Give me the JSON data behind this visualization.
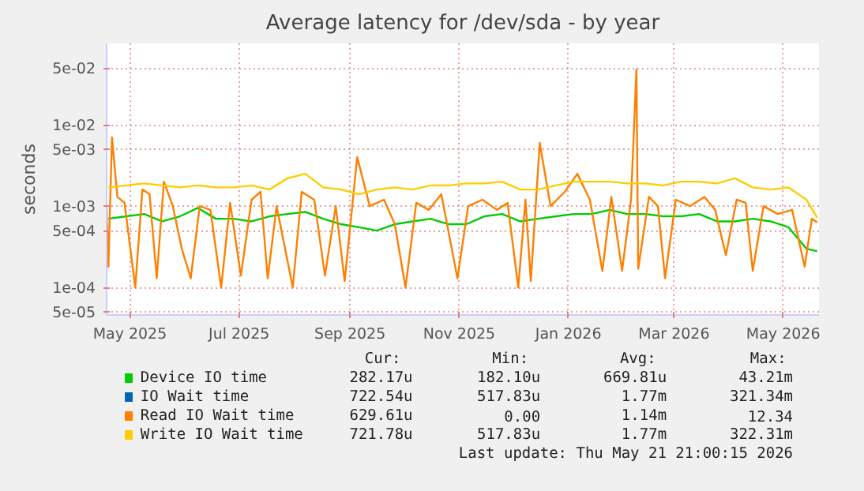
{
  "chart_data": {
    "type": "line",
    "title": "Average latency for /dev/sda - by year",
    "ylabel": "seconds",
    "log": true,
    "grid": true,
    "legend": "bottom",
    "xlim": [
      "2025-04-18",
      "2026-05-21"
    ],
    "ylim": [
      4.6e-05,
      0.1
    ],
    "xticks": [
      {
        "value": "2025-05-01",
        "label": "May 2025"
      },
      {
        "value": "2025-07-01",
        "label": "Jul 2025"
      },
      {
        "value": "2025-09-01",
        "label": "Sep 2025"
      },
      {
        "value": "2025-11-01",
        "label": "Nov 2025"
      },
      {
        "value": "2026-01-01",
        "label": "Jan 2026"
      },
      {
        "value": "2026-03-01",
        "label": "Mar 2026"
      },
      {
        "value": "2026-05-01",
        "label": "May 2026"
      }
    ],
    "yticks": [
      {
        "value": 5e-05,
        "label": "5e-05"
      },
      {
        "value": 0.0001,
        "label": "1e-04"
      },
      {
        "value": 0.0005,
        "label": "5e-04"
      },
      {
        "value": 0.001,
        "label": "1e-03"
      },
      {
        "value": 0.005,
        "label": "5e-03"
      },
      {
        "value": 0.01,
        "label": "1e-02"
      },
      {
        "value": 0.05,
        "label": "5e-02"
      }
    ],
    "x": [
      "2025-04-19",
      "2025-04-29",
      "2025-05-09",
      "2025-05-19",
      "2025-05-29",
      "2025-06-08",
      "2025-06-18",
      "2025-06-28",
      "2025-07-08",
      "2025-07-18",
      "2025-07-28",
      "2025-08-07",
      "2025-08-17",
      "2025-08-27",
      "2025-09-06",
      "2025-09-16",
      "2025-09-26",
      "2025-10-06",
      "2025-10-16",
      "2025-10-26",
      "2025-11-05",
      "2025-11-15",
      "2025-11-25",
      "2025-12-05",
      "2025-12-15",
      "2025-12-25",
      "2026-01-04",
      "2026-01-14",
      "2026-01-24",
      "2026-02-03",
      "2026-02-13",
      "2026-02-23",
      "2026-03-05",
      "2026-03-15",
      "2026-03-25",
      "2026-04-04",
      "2026-04-14",
      "2026-04-24",
      "2026-05-04",
      "2026-05-14",
      "2026-05-20"
    ],
    "series": [
      {
        "name": "Device IO time",
        "color": "#00cc00",
        "values": [
          0.0007,
          0.00075,
          0.0008,
          0.00065,
          0.00075,
          0.00095,
          0.0007,
          0.0007,
          0.00065,
          0.00075,
          0.0008,
          0.00085,
          0.0007,
          0.0006,
          0.00055,
          0.0005,
          0.0006,
          0.00065,
          0.0007,
          0.0006,
          0.0006,
          0.00075,
          0.0008,
          0.00065,
          0.0007,
          0.00075,
          0.0008,
          0.0008,
          0.0009,
          0.0008,
          0.0008,
          0.00075,
          0.00075,
          0.0008,
          0.00065,
          0.00065,
          0.0007,
          0.00065,
          0.00055,
          0.0003,
          0.00028
        ]
      },
      {
        "name": "IO Wait time",
        "color": "#0066b3",
        "values": [
          null,
          null,
          null,
          null,
          null,
          null,
          null,
          null,
          null,
          null,
          null,
          null,
          null,
          null,
          null,
          null,
          null,
          null,
          null,
          null,
          null,
          null,
          null,
          null,
          null,
          null,
          null,
          null,
          null,
          null,
          null,
          null,
          null,
          null,
          null,
          null,
          null,
          null,
          null,
          null,
          null
        ]
      },
      {
        "name": "Read IO Wait time",
        "color": "#ff8000",
        "x": [
          "2025-04-18",
          "2025-04-19",
          "2025-04-21",
          "2025-04-24",
          "2025-04-28",
          "2025-05-04",
          "2025-05-08",
          "2025-05-12",
          "2025-05-16",
          "2025-05-20",
          "2025-05-25",
          "2025-05-30",
          "2025-06-04",
          "2025-06-09",
          "2025-06-15",
          "2025-06-21",
          "2025-06-26",
          "2025-07-02",
          "2025-07-08",
          "2025-07-13",
          "2025-07-17",
          "2025-07-22",
          "2025-07-31",
          "2025-08-05",
          "2025-08-12",
          "2025-08-18",
          "2025-08-24",
          "2025-08-29",
          "2025-09-05",
          "2025-09-12",
          "2025-09-20",
          "2025-09-26",
          "2025-10-02",
          "2025-10-08",
          "2025-10-15",
          "2025-10-22",
          "2025-10-31",
          "2025-11-06",
          "2025-11-14",
          "2025-11-22",
          "2025-11-28",
          "2025-12-04",
          "2025-12-08",
          "2025-12-11",
          "2025-12-16",
          "2025-12-22",
          "2025-12-30",
          "2026-01-06",
          "2026-01-13",
          "2026-01-20",
          "2026-01-25",
          "2026-01-31",
          "2026-02-05",
          "2026-02-08",
          "2026-02-09",
          "2026-02-15",
          "2026-02-20",
          "2026-02-24",
          "2026-03-02",
          "2026-03-10",
          "2026-03-18",
          "2026-03-24",
          "2026-03-30",
          "2026-04-05",
          "2026-04-10",
          "2026-04-14",
          "2026-04-20",
          "2026-04-28",
          "2026-05-06",
          "2026-05-13",
          "2026-05-17",
          "2026-05-20"
        ],
        "values": [
          0.001,
          0.00018,
          0.007,
          0.0013,
          0.0011,
          0.0001,
          0.0016,
          0.0014,
          0.00013,
          0.002,
          0.001,
          0.0003,
          0.00013,
          0.001,
          0.0009,
          0.0001,
          0.0011,
          0.00014,
          0.0012,
          0.0015,
          0.00013,
          0.001,
          0.0001,
          0.0015,
          0.0012,
          0.00014,
          0.001,
          0.00012,
          0.004,
          0.001,
          0.0012,
          0.0006,
          0.0001,
          0.0011,
          0.0009,
          0.0014,
          0.00013,
          0.001,
          0.0012,
          0.0009,
          0.0011,
          0.0001,
          0.0012,
          0.00012,
          0.006,
          0.001,
          0.0015,
          0.0025,
          0.0012,
          0.00016,
          0.0013,
          0.00016,
          0.0012,
          0.048,
          0.00017,
          0.0013,
          0.001,
          0.00013,
          0.0012,
          0.001,
          0.0013,
          0.0009,
          0.00025,
          0.0012,
          0.0011,
          0.00016,
          0.001,
          0.0008,
          0.0009,
          0.00018,
          0.0007,
          0.00063
        ]
      },
      {
        "name": "Write IO Wait time",
        "color": "#ffcc00",
        "values": [
          0.0017,
          0.0018,
          0.0019,
          0.0018,
          0.0017,
          0.0018,
          0.0017,
          0.0017,
          0.0018,
          0.0016,
          0.0022,
          0.0025,
          0.0017,
          0.0016,
          0.0014,
          0.0016,
          0.0017,
          0.0016,
          0.0018,
          0.0018,
          0.0019,
          0.0019,
          0.002,
          0.0016,
          0.0016,
          0.0018,
          0.002,
          0.002,
          0.002,
          0.0019,
          0.0019,
          0.0018,
          0.002,
          0.002,
          0.0019,
          0.0022,
          0.0017,
          0.0016,
          0.0017,
          0.0012,
          0.00072
        ]
      }
    ],
    "annotations": [
      "Cur:",
      "Min:",
      "Avg:",
      "Max:",
      "282.17u",
      "182.10u",
      "669.81u",
      "43.21m",
      "722.54u",
      "517.83u",
      "1.77m",
      "321.34m",
      "629.61u",
      "0.00",
      "1.14m",
      "12.34",
      "721.78u",
      "517.83u",
      "1.77m",
      "322.31m",
      "Last update: Thu May 21 21:00:15 2026"
    ]
  }
}
